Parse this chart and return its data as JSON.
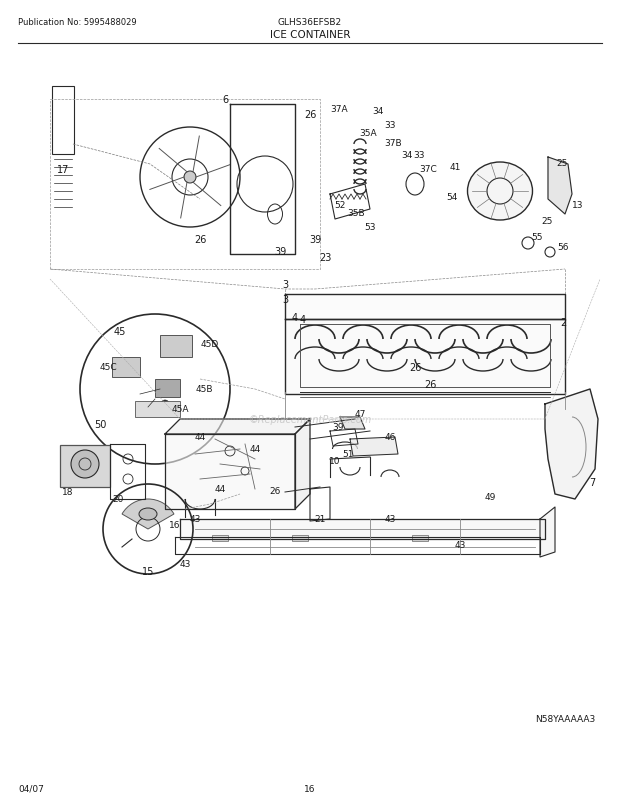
{
  "pub_no": "Publication No: 5995488029",
  "model": "GLHS36EFSB2",
  "section": "ICE CONTAINER",
  "date": "04/07",
  "page": "16",
  "diagram_id": "N58YAAAAA3",
  "bg_color": "#ffffff",
  "text_color": "#1a1a1a",
  "line_color": "#2a2a2a",
  "fig_width": 6.2,
  "fig_height": 8.03
}
